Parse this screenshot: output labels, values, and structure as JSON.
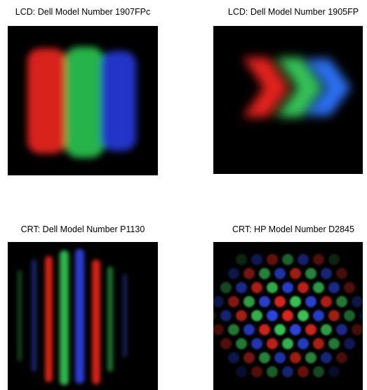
{
  "panels": [
    {
      "caption": "LCD: Dell Model Number 1907FPc"
    },
    {
      "caption": "LCD: Dell Model Number 1905FP"
    },
    {
      "caption": "CRT: Dell Model Number P1130"
    },
    {
      "caption": "CRT: HP Model Number D2845"
    }
  ]
}
